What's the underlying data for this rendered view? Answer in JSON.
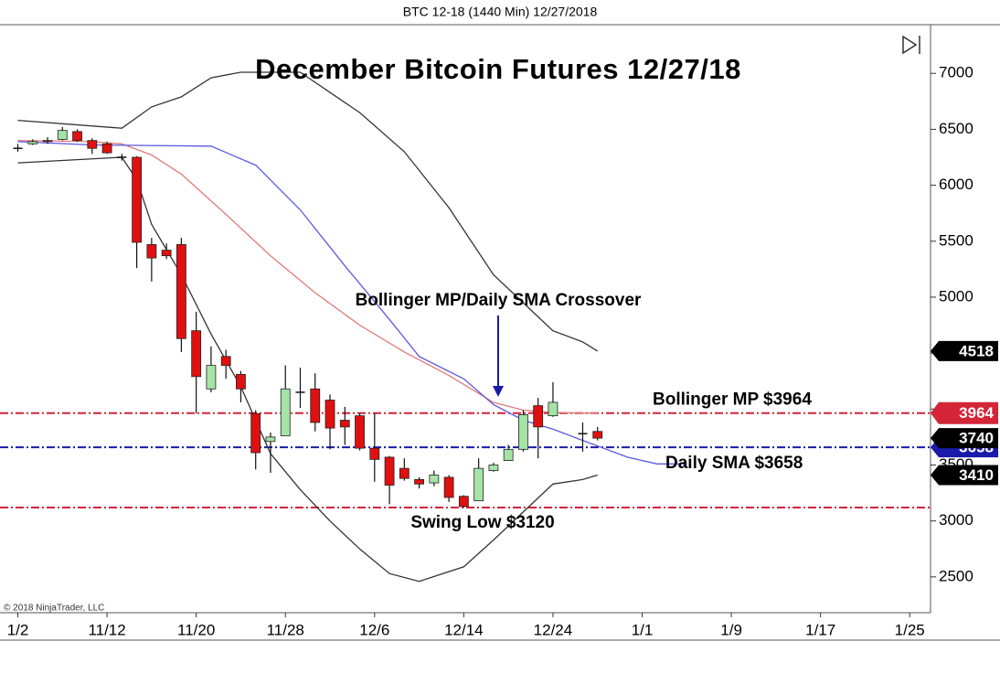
{
  "chart_data": {
    "type": "candlestick",
    "header": "BTC 12-18 (1440 Min)  12/27/2018",
    "title": "December Bitcoin Futures 12/27/18",
    "copyright": "© 2018 NinjaTrader, LLC",
    "x": [
      0,
      1,
      2,
      3,
      4,
      5,
      6,
      7,
      8,
      9,
      10,
      11,
      12,
      13,
      14,
      15,
      16,
      17,
      18,
      19,
      20,
      21,
      22,
      23,
      24,
      25,
      26,
      27,
      28,
      29,
      30,
      31,
      32,
      33,
      34,
      35,
      36,
      38,
      39
    ],
    "open": [
      6330,
      6370,
      6400,
      6410,
      6480,
      6400,
      6370,
      6250,
      6250,
      5470,
      5420,
      5470,
      4700,
      4180,
      4470,
      4310,
      3960,
      3710,
      3760,
      4150,
      4180,
      4080,
      3900,
      3940,
      3650,
      3570,
      3470,
      3370,
      3340,
      3390,
      3220,
      3180,
      3450,
      3540,
      3640,
      4030,
      3940,
      3780,
      3800
    ],
    "high": [
      6370,
      6410,
      6430,
      6520,
      6500,
      6420,
      6390,
      6280,
      6260,
      5530,
      5480,
      5530,
      4870,
      4560,
      4530,
      4340,
      3990,
      3790,
      4390,
      4370,
      4320,
      4130,
      4020,
      3960,
      3960,
      3580,
      3560,
      3390,
      3450,
      3410,
      3230,
      3560,
      3520,
      3680,
      3990,
      4100,
      4240,
      3880,
      3840
    ],
    "low": [
      6300,
      6360,
      6370,
      6400,
      6390,
      6280,
      6280,
      6220,
      5260,
      5140,
      5340,
      4510,
      3960,
      4150,
      4270,
      4060,
      3460,
      3430,
      3760,
      4010,
      3800,
      3640,
      3680,
      3630,
      3350,
      3150,
      3360,
      3290,
      3310,
      3170,
      3120,
      3180,
      3440,
      3540,
      3620,
      3560,
      3930,
      3620,
      3720
    ],
    "close": [
      6330,
      6390,
      6390,
      6490,
      6400,
      6330,
      6290,
      6250,
      5490,
      5350,
      5370,
      4630,
      4290,
      4390,
      4390,
      4180,
      3610,
      3750,
      4180,
      4150,
      3880,
      3830,
      3840,
      3650,
      3550,
      3320,
      3380,
      3330,
      3410,
      3210,
      3130,
      3470,
      3500,
      3640,
      3950,
      3840,
      4060,
      3780,
      3740
    ],
    "up_color": "#a6e3a6",
    "down_color": "#e01010",
    "last_badge_color": "#000000",
    "overlays": [
      {
        "color": "#333333",
        "x": [
          0,
          7,
          9,
          11,
          13,
          15,
          19,
          23,
          26,
          29,
          32,
          34,
          36,
          38,
          39
        ],
        "values": [
          6580,
          6510,
          6700,
          6790,
          6960,
          7010,
          7010,
          6650,
          6300,
          5800,
          5200,
          4950,
          4700,
          4600,
          4518
        ]
      },
      {
        "color": "#e07a7a",
        "x": [
          0,
          5,
          7,
          9,
          11,
          14,
          17,
          20,
          23,
          26,
          29,
          32,
          34,
          36,
          38,
          39
        ],
        "values": [
          6400,
          6390,
          6370,
          6270,
          6100,
          5740,
          5370,
          5040,
          4750,
          4510,
          4300,
          4060,
          3990,
          3970,
          3964,
          3964
        ]
      },
      {
        "color": "#333333",
        "x": [
          0,
          7,
          8,
          9,
          11,
          13,
          15,
          16,
          17,
          19,
          21,
          23,
          25,
          27,
          30,
          32,
          34,
          36,
          38,
          39
        ],
        "values": [
          6200,
          6250,
          6050,
          5650,
          5200,
          4670,
          4200,
          3900,
          3600,
          3280,
          3000,
          2750,
          2530,
          2460,
          2590,
          2830,
          3080,
          3330,
          3370,
          3410
        ]
      },
      {
        "color": "#5a5ae0",
        "x": [
          0,
          5,
          13,
          16,
          19,
          22,
          25,
          27,
          30,
          32,
          34,
          36,
          38,
          41,
          43,
          45
        ],
        "values": [
          6390,
          6360,
          6350,
          6180,
          5780,
          5280,
          4800,
          4470,
          4270,
          4040,
          3900,
          3820,
          3720,
          3570,
          3510,
          3510
        ]
      }
    ],
    "levels": [
      {
        "label": "Bollinger MP $3964",
        "value": 3964,
        "color": "#d42438"
      },
      {
        "label": "Daily SMA $3658",
        "value": 3658,
        "color": "#1a1aaa"
      },
      {
        "label": "Swing Low $3120",
        "value": 3120,
        "color": "#d42438"
      }
    ],
    "annotation": "Bollinger MP/Daily SMA Crossover",
    "xlim": [
      -1.2,
      61.4
    ],
    "xticks": [
      {
        "value": 0,
        "label": "1/2"
      },
      {
        "value": 6,
        "label": "11/12"
      },
      {
        "value": 12,
        "label": "11/20"
      },
      {
        "value": 18,
        "label": "11/28"
      },
      {
        "value": 24,
        "label": "12/6"
      },
      {
        "value": 30,
        "label": "12/14"
      },
      {
        "value": 36,
        "label": "12/24"
      },
      {
        "value": 42,
        "label": "1/1"
      },
      {
        "value": 48,
        "label": "1/9"
      },
      {
        "value": 54,
        "label": "1/17"
      },
      {
        "value": 60,
        "label": "1/25"
      }
    ],
    "ylim": [
      2180,
      7435
    ],
    "yticks": [
      2500,
      3000,
      3500,
      4000,
      4500,
      5000,
      5500,
      6000,
      6500,
      7000
    ]
  }
}
